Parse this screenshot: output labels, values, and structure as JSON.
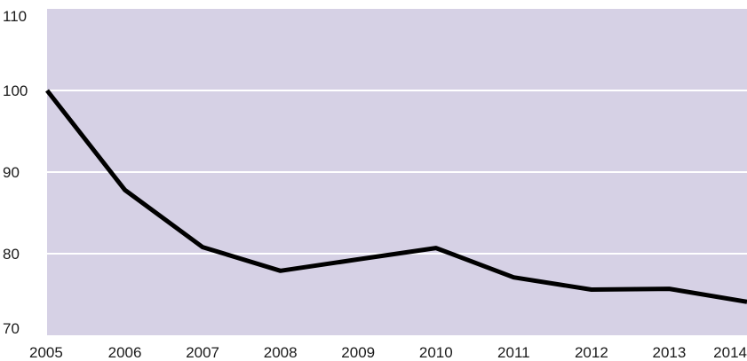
{
  "chart_data": {
    "type": "line",
    "title": "",
    "xlabel": "",
    "ylabel": "",
    "x": [
      "2005",
      "2006",
      "2007",
      "2008",
      "2009",
      "2010",
      "2011",
      "2012",
      "2013",
      "2014"
    ],
    "series": [
      {
        "values": [
          100,
          87.8,
          80.8,
          77.9,
          79.3,
          80.7,
          77.1,
          75.6,
          75.7,
          74.1
        ]
      }
    ],
    "ylim": [
      70,
      110
    ],
    "yticks": [
      70,
      80,
      90,
      100,
      110
    ],
    "xtick_labels": [
      "2005",
      "2006",
      "2007",
      "2008",
      "2009",
      "2010",
      "2011",
      "2012",
      "2013",
      "2014"
    ],
    "ytick_labels": [
      "70",
      "80",
      "90",
      "100",
      "110"
    ],
    "grid": true,
    "legend": "none",
    "colors": {
      "plot_background": "#d6d1e5",
      "gridline": "#ffffff",
      "line": "#000000"
    }
  }
}
